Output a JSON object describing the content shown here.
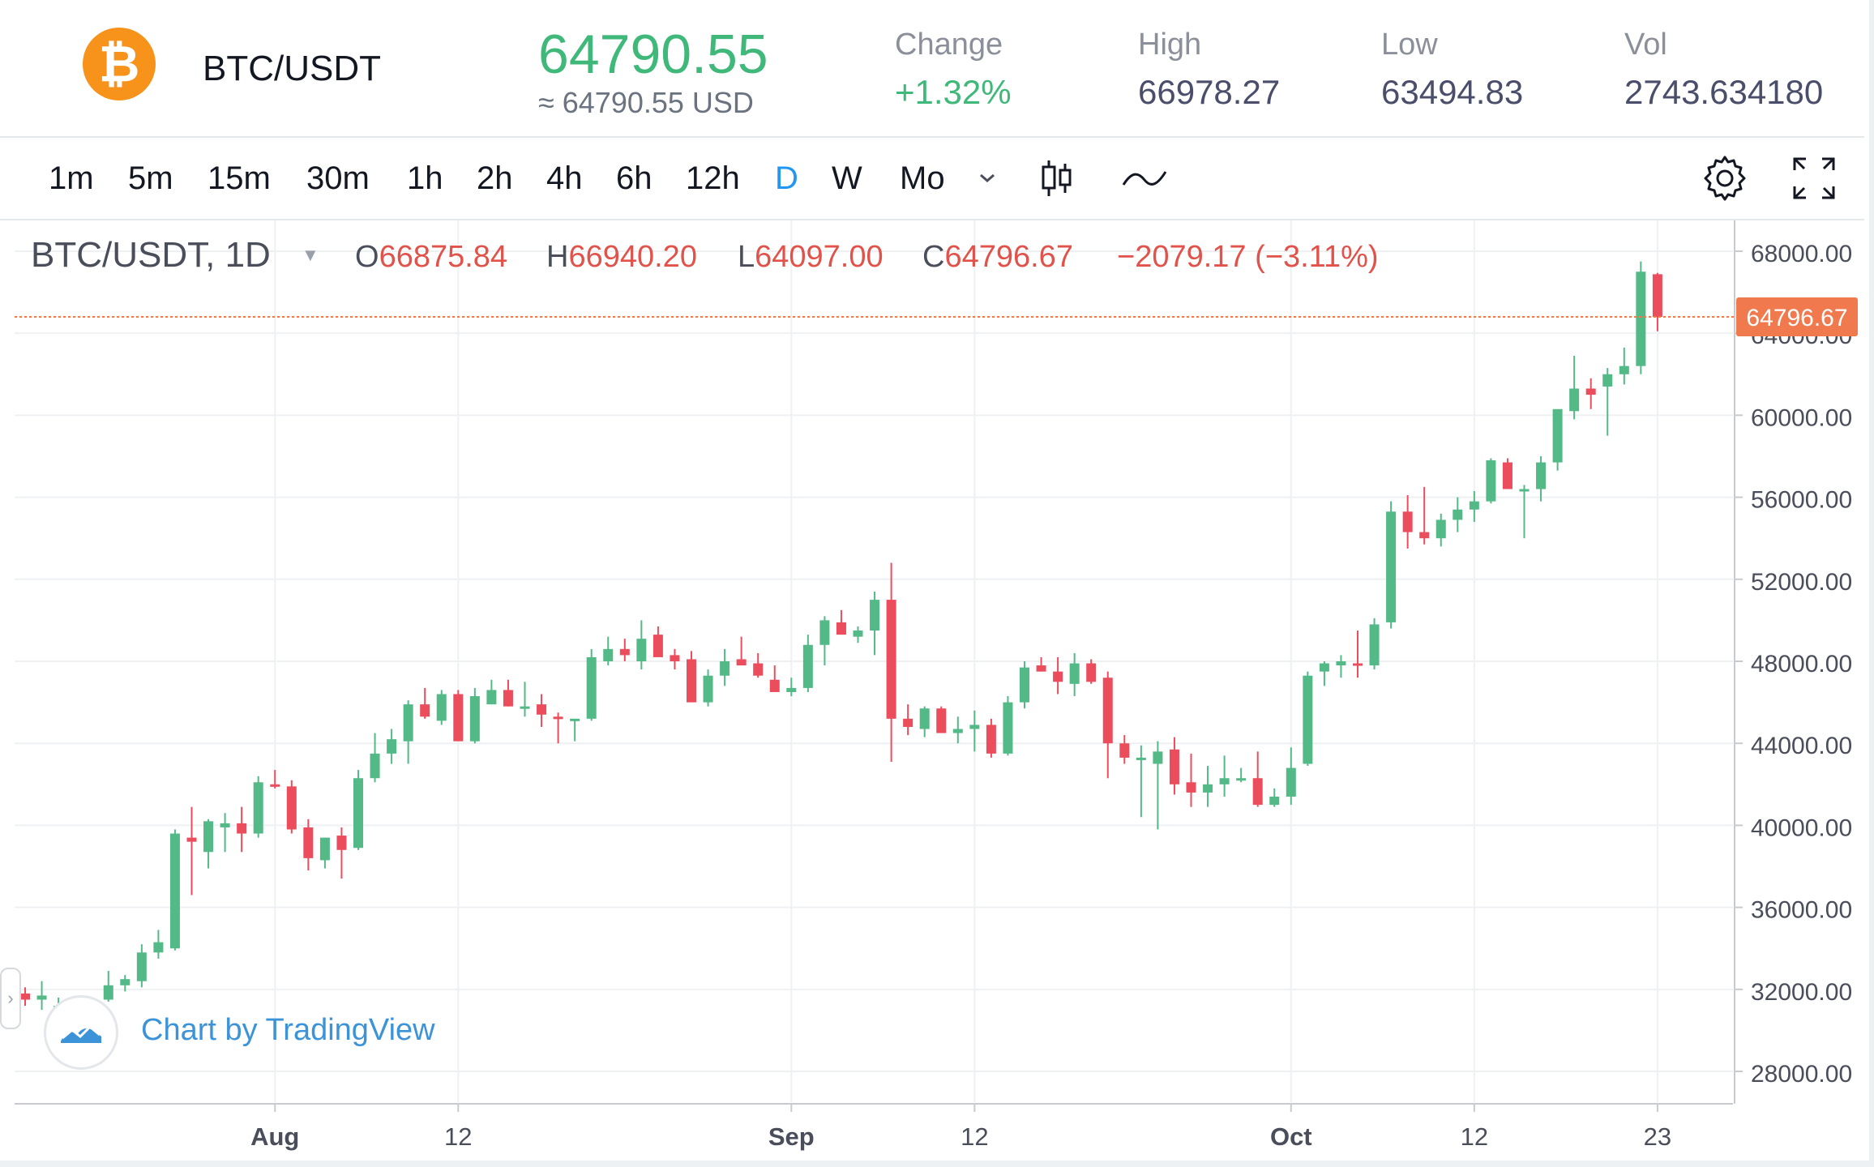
{
  "header": {
    "pair": "BTC/USDT",
    "price": "64790.55",
    "price_usd": "≈ 64790.55 USD",
    "stats": [
      {
        "label": "Change",
        "value": "+1.32%"
      },
      {
        "label": "High",
        "value": "66978.27"
      },
      {
        "label": "Low",
        "value": "63494.83"
      },
      {
        "label": "Vol",
        "value": "2743.634180"
      }
    ]
  },
  "toolbar": {
    "timeframes": [
      "1m",
      "5m",
      "15m",
      "30m",
      "1h",
      "2h",
      "4h",
      "6h",
      "12h",
      "D",
      "W",
      "Mo"
    ],
    "active": "D"
  },
  "legend": {
    "symbol": "BTC/USDT, 1D",
    "o_label": "O",
    "o": "66875.84",
    "h_label": "H",
    "h": "66940.20",
    "l_label": "L",
    "l": "64097.00",
    "c_label": "C",
    "c": "64796.67",
    "change": "−2079.17 (−3.11%)"
  },
  "branding": {
    "text": "Chart by TradingView"
  },
  "colors": {
    "up": "#53b987",
    "down": "#eb4d5c",
    "price_line": "#f0794d",
    "accent": "#2196f3"
  },
  "chart_data": {
    "type": "candlestick",
    "ylim": [
      26500,
      69500
    ],
    "y_ticks": [
      "68000.00",
      "64000.00",
      "60000.00",
      "56000.00",
      "52000.00",
      "48000.00",
      "44000.00",
      "40000.00",
      "36000.00",
      "32000.00",
      "28000.00"
    ],
    "x_ticks": [
      {
        "label": "Aug",
        "index": 15,
        "bold": true
      },
      {
        "label": "12",
        "index": 26,
        "bold": false
      },
      {
        "label": "Sep",
        "index": 46,
        "bold": true
      },
      {
        "label": "12",
        "index": 57,
        "bold": false
      },
      {
        "label": "Oct",
        "index": 76,
        "bold": true
      },
      {
        "label": "12",
        "index": 87,
        "bold": false
      },
      {
        "label": "23",
        "index": 98,
        "bold": false
      }
    ],
    "last_price": "64796.67",
    "last_value": 64796.67,
    "candles": [
      [
        31800,
        32100,
        31200,
        31500
      ],
      [
        31500,
        32400,
        31000,
        31700
      ],
      [
        31000,
        31600,
        30300,
        31200
      ],
      [
        31100,
        31500,
        30600,
        30900
      ],
      [
        30900,
        31100,
        30400,
        30700
      ],
      [
        31500,
        32900,
        31400,
        32200
      ],
      [
        32200,
        32700,
        31900,
        32500
      ],
      [
        32400,
        34200,
        32100,
        33800
      ],
      [
        33800,
        34900,
        33500,
        34300
      ],
      [
        34000,
        39800,
        33900,
        39600
      ],
      [
        39400,
        40900,
        36600,
        39200
      ],
      [
        38700,
        40300,
        37900,
        40200
      ],
      [
        39900,
        40600,
        38700,
        40100
      ],
      [
        40100,
        40900,
        38700,
        39600
      ],
      [
        39600,
        42400,
        39400,
        42100
      ],
      [
        42000,
        42700,
        41800,
        41900
      ],
      [
        41900,
        42200,
        39600,
        39800
      ],
      [
        39900,
        40300,
        37800,
        38400
      ],
      [
        38300,
        39400,
        37900,
        39400
      ],
      [
        39500,
        39900,
        37400,
        38800
      ],
      [
        38900,
        42700,
        38800,
        42300
      ],
      [
        42300,
        44500,
        42100,
        43500
      ],
      [
        43500,
        44700,
        43000,
        44200
      ],
      [
        44100,
        46100,
        43000,
        45900
      ],
      [
        45900,
        46700,
        45200,
        45300
      ],
      [
        45100,
        46600,
        44900,
        46400
      ],
      [
        46400,
        46600,
        44200,
        44100
      ],
      [
        44100,
        46700,
        44000,
        46300
      ],
      [
        45900,
        47100,
        45900,
        46600
      ],
      [
        46600,
        47100,
        45800,
        45800
      ],
      [
        45800,
        47000,
        45300,
        45800
      ],
      [
        45900,
        46400,
        44800,
        45400
      ],
      [
        45300,
        45500,
        44000,
        45200
      ],
      [
        45100,
        45200,
        44100,
        45200
      ],
      [
        45200,
        48600,
        45100,
        48200
      ],
      [
        48000,
        49200,
        47800,
        48600
      ],
      [
        48600,
        49100,
        48000,
        48300
      ],
      [
        48000,
        50000,
        47600,
        49100
      ],
      [
        49300,
        49700,
        48300,
        48200
      ],
      [
        48300,
        48600,
        47600,
        48000
      ],
      [
        48100,
        48500,
        46400,
        46000
      ],
      [
        46000,
        47600,
        45800,
        47300
      ],
      [
        47300,
        48600,
        46800,
        48000
      ],
      [
        48100,
        49200,
        47800,
        47800
      ],
      [
        47900,
        48400,
        47200,
        47300
      ],
      [
        47100,
        47800,
        46800,
        46500
      ],
      [
        46500,
        47200,
        46300,
        46700
      ],
      [
        46700,
        49300,
        46500,
        48800
      ],
      [
        48800,
        50200,
        47800,
        50000
      ],
      [
        49900,
        50500,
        49300,
        49300
      ],
      [
        49200,
        49700,
        48900,
        49500
      ],
      [
        49500,
        51400,
        48300,
        51000
      ],
      [
        51000,
        52800,
        43100,
        45200
      ],
      [
        45200,
        45900,
        44400,
        44800
      ],
      [
        44700,
        45800,
        44300,
        45700
      ],
      [
        45700,
        45800,
        44800,
        44500
      ],
      [
        44500,
        45300,
        44000,
        44700
      ],
      [
        44700,
        45600,
        43600,
        44900
      ],
      [
        44900,
        45200,
        43300,
        43500
      ],
      [
        43500,
        46300,
        43400,
        46000
      ],
      [
        46000,
        48000,
        45700,
        47700
      ],
      [
        47800,
        48200,
        47500,
        47500
      ],
      [
        47500,
        48200,
        46400,
        47000
      ],
      [
        46900,
        48400,
        46300,
        47900
      ],
      [
        47900,
        48100,
        46900,
        47000
      ],
      [
        47200,
        47500,
        42300,
        44000
      ],
      [
        44000,
        44400,
        43000,
        43300
      ],
      [
        43300,
        43900,
        40400,
        43300
      ],
      [
        43000,
        44100,
        39800,
        43600
      ],
      [
        43700,
        44300,
        41500,
        42000
      ],
      [
        42100,
        43500,
        40900,
        41600
      ],
      [
        41600,
        42900,
        40900,
        42000
      ],
      [
        42000,
        43400,
        41400,
        42300
      ],
      [
        42300,
        42800,
        42100,
        42300
      ],
      [
        42300,
        43600,
        40900,
        41000
      ],
      [
        41000,
        41800,
        40900,
        41400
      ],
      [
        41400,
        43800,
        41000,
        42800
      ],
      [
        43000,
        47500,
        42900,
        47300
      ],
      [
        47500,
        48000,
        46800,
        47900
      ],
      [
        47800,
        48300,
        47200,
        48000
      ],
      [
        47900,
        49500,
        47200,
        47800
      ],
      [
        47800,
        50100,
        47600,
        49800
      ],
      [
        49900,
        55800,
        49600,
        55300
      ],
      [
        55300,
        56100,
        53500,
        54300
      ],
      [
        54300,
        56500,
        53700,
        54000
      ],
      [
        54000,
        55200,
        53600,
        54900
      ],
      [
        54900,
        56000,
        54300,
        55400
      ],
      [
        55400,
        56300,
        54800,
        55800
      ],
      [
        55800,
        57900,
        55700,
        57800
      ],
      [
        57700,
        57900,
        56400,
        56400
      ],
      [
        56300,
        56600,
        54000,
        56400
      ],
      [
        56400,
        58000,
        55800,
        57700
      ],
      [
        57700,
        60200,
        57300,
        60300
      ],
      [
        60200,
        62900,
        59800,
        61300
      ],
      [
        61300,
        61800,
        60300,
        61000
      ],
      [
        61400,
        62300,
        59000,
        62000
      ],
      [
        62000,
        63300,
        61500,
        62400
      ],
      [
        62400,
        67500,
        62000,
        67000
      ],
      [
        66876,
        66940,
        64097,
        64797
      ]
    ]
  }
}
